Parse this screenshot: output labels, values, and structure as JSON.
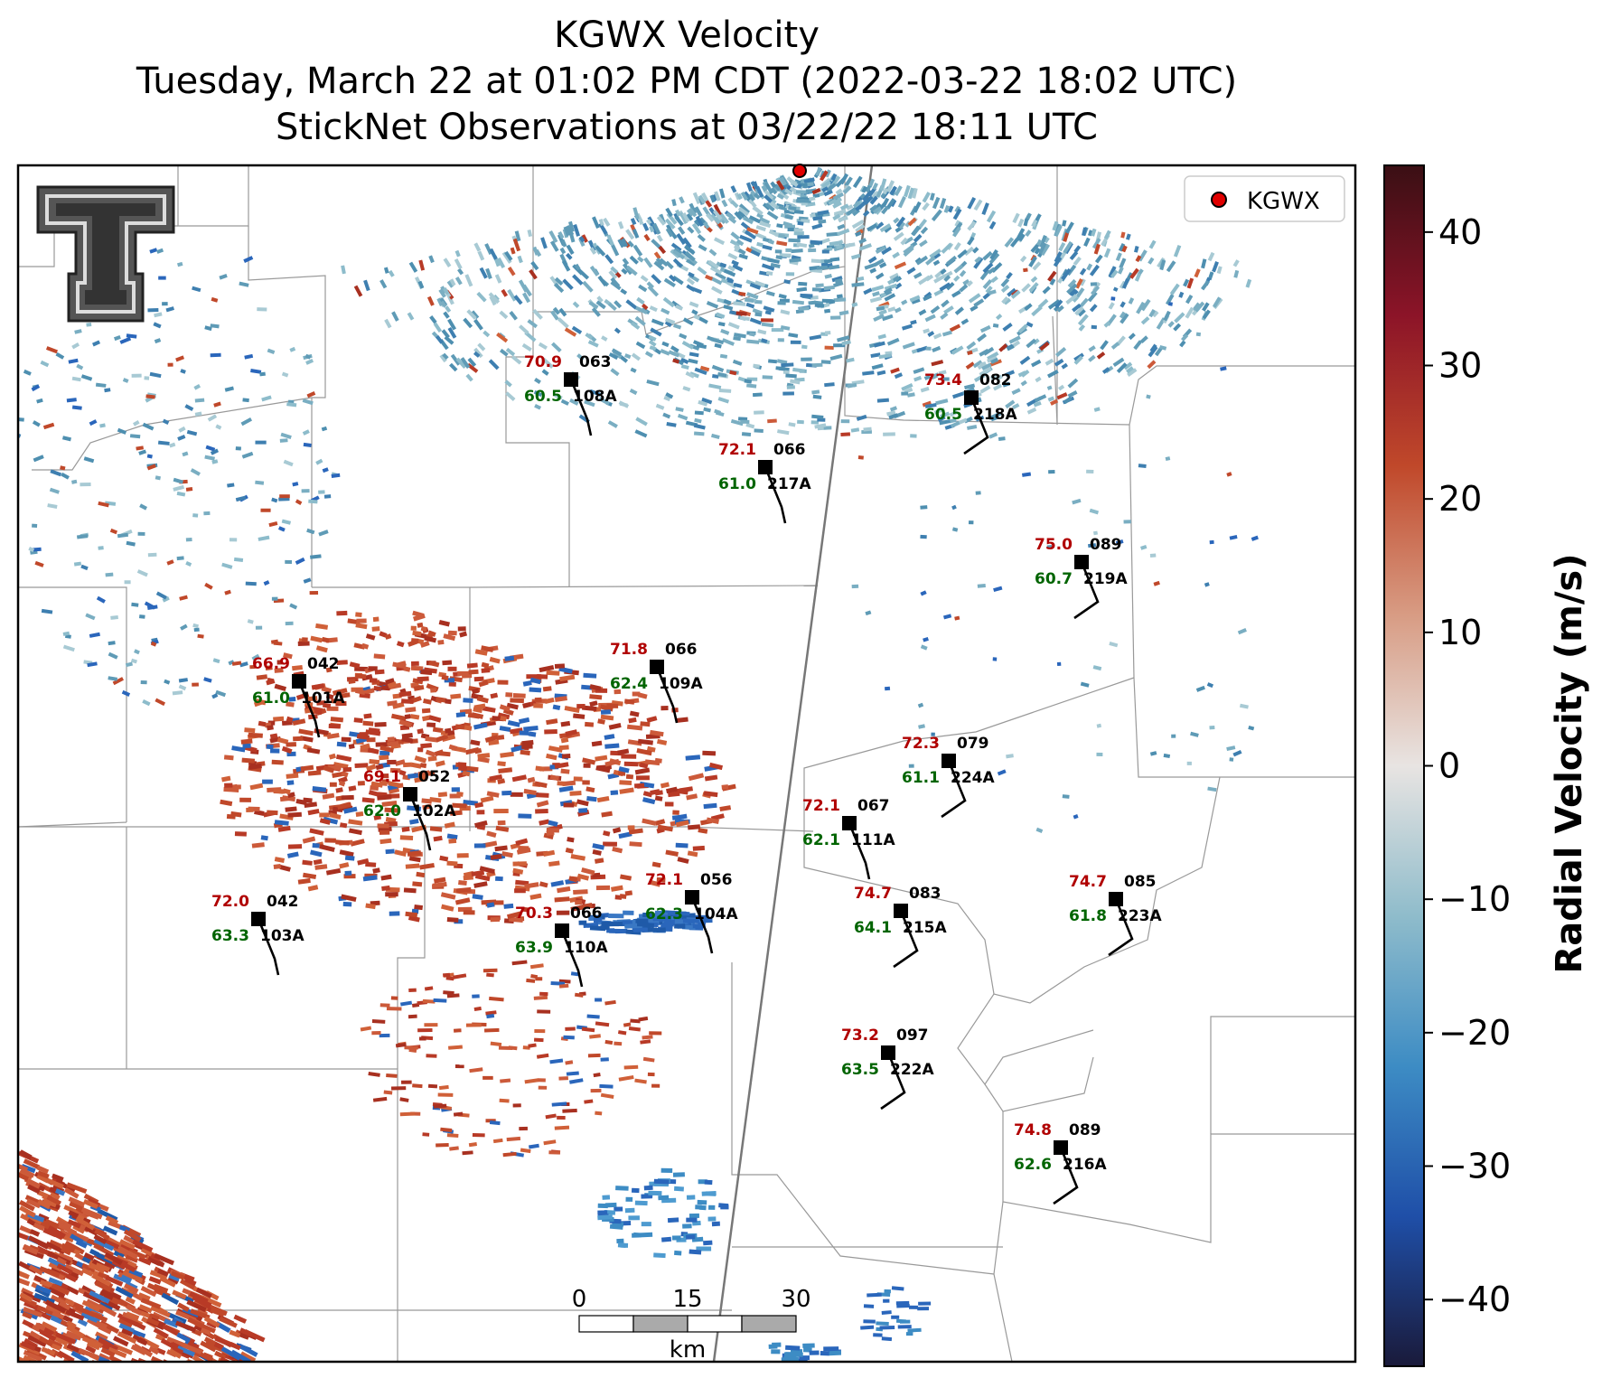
{
  "title": {
    "line1": "KGWX Velocity",
    "line2": "Tuesday, March 22 at 01:02 PM CDT (2022-03-22 18:02 UTC)",
    "line3": "StickNet Observations at 03/22/22 18:11 UTC"
  },
  "legend": {
    "label": "KGWX",
    "marker_color": "#e00000"
  },
  "logo": {
    "name": "Texas Tech double-T logo"
  },
  "colorbar": {
    "label": "Radial Velocity (m/s)",
    "ticks": [
      "40",
      "30",
      "20",
      "10",
      "0",
      "−10",
      "−20",
      "−30",
      "−40"
    ],
    "range": [
      -45,
      45
    ],
    "colors": [
      "#1a1a3a",
      "#1f4fa8",
      "#3d8cc4",
      "#8fbccb",
      "#e8e4e2",
      "#d89c84",
      "#c0482a",
      "#8c1428",
      "#3a0f14"
    ]
  },
  "scale_bar": {
    "ticks": [
      "0",
      "15",
      "30"
    ],
    "unit": "km"
  },
  "stations": [
    {
      "id": "108A",
      "temp": "70.9",
      "dew": "60.5",
      "dir": "063"
    },
    {
      "id": "218A",
      "temp": "73.4",
      "dew": "60.5",
      "dir": "082"
    },
    {
      "id": "217A",
      "temp": "72.1",
      "dew": "61.0",
      "dir": "066"
    },
    {
      "id": "219A",
      "temp": "75.0",
      "dew": "60.7",
      "dir": "089"
    },
    {
      "id": "109A",
      "temp": "71.8",
      "dew": "62.4",
      "dir": "066"
    },
    {
      "id": "101A",
      "temp": "66.9",
      "dew": "61.0",
      "dir": "042"
    },
    {
      "id": "224A",
      "temp": "72.3",
      "dew": "61.1",
      "dir": "079"
    },
    {
      "id": "102A",
      "temp": "69.1",
      "dew": "62.0",
      "dir": "052"
    },
    {
      "id": "111A",
      "temp": "72.1",
      "dew": "62.1",
      "dir": "067"
    },
    {
      "id": "104A",
      "temp": "72.1",
      "dew": "62.3",
      "dir": "056"
    },
    {
      "id": "215A",
      "temp": "74.7",
      "dew": "64.1",
      "dir": "083"
    },
    {
      "id": "223A",
      "temp": "74.7",
      "dew": "61.8",
      "dir": "085"
    },
    {
      "id": "103A",
      "temp": "72.0",
      "dew": "63.3",
      "dir": "042"
    },
    {
      "id": "110A",
      "temp": "70.3",
      "dew": "63.9",
      "dir": "066"
    },
    {
      "id": "222A",
      "temp": "73.2",
      "dew": "63.5",
      "dir": "097"
    },
    {
      "id": "216A",
      "temp": "74.8",
      "dew": "62.6",
      "dir": "089"
    }
  ]
}
